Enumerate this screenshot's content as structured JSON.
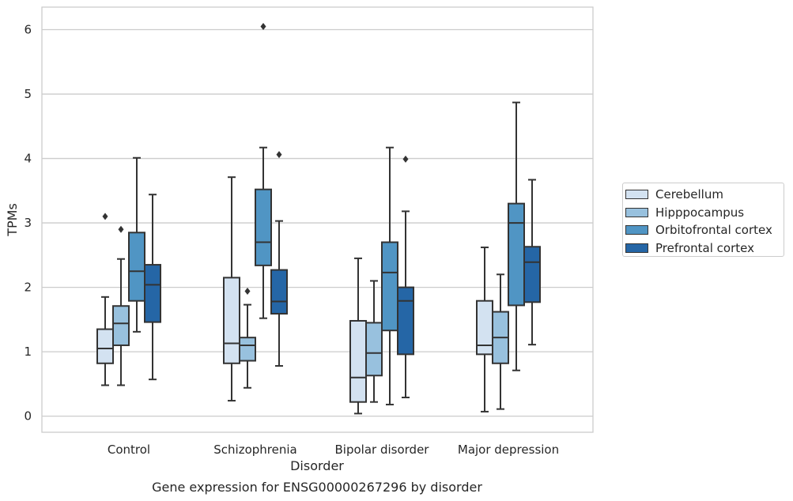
{
  "caption": "Gene expression for ENSG00000267296 by disorder",
  "chart_data": {
    "type": "boxplot",
    "xlabel": "Disorder",
    "ylabel": "TPMs",
    "ylim": [
      -0.25,
      6.35
    ],
    "yticks": [
      0,
      1,
      2,
      3,
      4,
      5,
      6
    ],
    "grid": "horizontal",
    "legend_position": "right",
    "categories": [
      "Control",
      "Schizophrenia",
      "Bipolar disorder",
      "Major depression"
    ],
    "series": [
      {
        "name": "Cerebellum",
        "color": "#d3e2f1",
        "boxes": [
          {
            "whislo": 0.48,
            "q1": 0.82,
            "med": 1.05,
            "q3": 1.35,
            "whishi": 1.85,
            "fliers": [
              3.1
            ]
          },
          {
            "whislo": 0.24,
            "q1": 0.82,
            "med": 1.13,
            "q3": 2.15,
            "whishi": 3.71,
            "fliers": []
          },
          {
            "whislo": 0.04,
            "q1": 0.22,
            "med": 0.6,
            "q3": 1.48,
            "whishi": 2.45,
            "fliers": []
          },
          {
            "whislo": 0.07,
            "q1": 0.96,
            "med": 1.1,
            "q3": 1.79,
            "whishi": 2.62,
            "fliers": []
          }
        ]
      },
      {
        "name": "Hipppocampus",
        "color": "#98c1de",
        "boxes": [
          {
            "whislo": 0.48,
            "q1": 1.1,
            "med": 1.44,
            "q3": 1.71,
            "whishi": 2.44,
            "fliers": [
              2.9
            ]
          },
          {
            "whislo": 0.44,
            "q1": 0.86,
            "med": 1.1,
            "q3": 1.22,
            "whishi": 1.73,
            "fliers": [
              1.94
            ]
          },
          {
            "whislo": 0.22,
            "q1": 0.63,
            "med": 0.98,
            "q3": 1.45,
            "whishi": 2.1,
            "fliers": []
          },
          {
            "whislo": 0.11,
            "q1": 0.82,
            "med": 1.22,
            "q3": 1.62,
            "whishi": 2.2,
            "fliers": []
          }
        ]
      },
      {
        "name": "Orbitofrontal cortex",
        "color": "#5095c4",
        "boxes": [
          {
            "whislo": 1.31,
            "q1": 1.79,
            "med": 2.25,
            "q3": 2.85,
            "whishi": 4.01,
            "fliers": []
          },
          {
            "whislo": 1.52,
            "q1": 2.34,
            "med": 2.7,
            "q3": 3.52,
            "whishi": 4.17,
            "fliers": [
              6.05
            ]
          },
          {
            "whislo": 0.18,
            "q1": 1.33,
            "med": 2.23,
            "q3": 2.7,
            "whishi": 4.17,
            "fliers": []
          },
          {
            "whislo": 0.71,
            "q1": 1.72,
            "med": 3.0,
            "q3": 3.3,
            "whishi": 4.87,
            "fliers": []
          }
        ]
      },
      {
        "name": "Prefrontal cortex",
        "color": "#2566a6",
        "boxes": [
          {
            "whislo": 0.57,
            "q1": 1.46,
            "med": 2.04,
            "q3": 2.35,
            "whishi": 3.44,
            "fliers": []
          },
          {
            "whislo": 0.78,
            "q1": 1.59,
            "med": 1.78,
            "q3": 2.27,
            "whishi": 3.03,
            "fliers": [
              4.06
            ]
          },
          {
            "whislo": 0.29,
            "q1": 0.96,
            "med": 1.79,
            "q3": 2.0,
            "whishi": 3.18,
            "fliers": [
              3.99
            ]
          },
          {
            "whislo": 1.11,
            "q1": 1.77,
            "med": 2.39,
            "q3": 2.63,
            "whishi": 3.67,
            "fliers": []
          }
        ]
      }
    ]
  }
}
